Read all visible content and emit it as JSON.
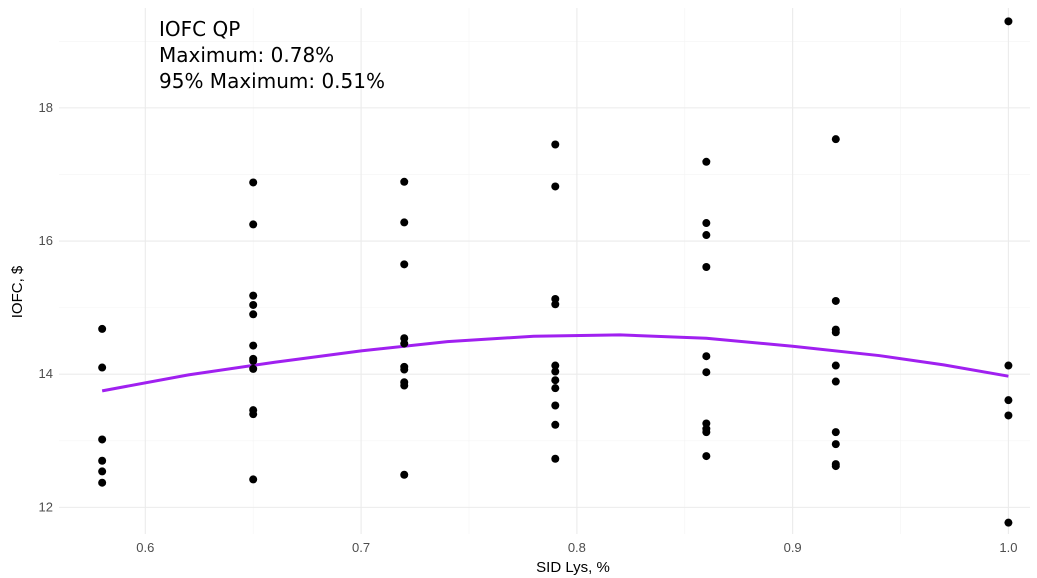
{
  "chart_data": {
    "type": "scatter",
    "xlabel": "SID Lys, %",
    "ylabel": "IOFC, $",
    "xlim": [
      0.56,
      1.01
    ],
    "ylim": [
      11.6,
      19.5
    ],
    "x_ticks": [
      0.6,
      0.7,
      0.8,
      0.9,
      1.0
    ],
    "x_tick_labels": [
      "0.6",
      "0.7",
      "0.8",
      "0.9",
      "1.0"
    ],
    "y_ticks": [
      12,
      14,
      16,
      18
    ],
    "y_tick_labels": [
      "12",
      "14",
      "16",
      "18"
    ],
    "grid": true,
    "annotations": [
      "IOFC QP",
      "Maximum: 0.78%",
      "95% Maximum: 0.51%"
    ],
    "point_color": "#000000",
    "line_color": "#a020f0",
    "points": [
      {
        "x": 0.58,
        "y": 14.68
      },
      {
        "x": 0.58,
        "y": 14.1
      },
      {
        "x": 0.58,
        "y": 13.02
      },
      {
        "x": 0.58,
        "y": 12.7
      },
      {
        "x": 0.58,
        "y": 12.54
      },
      {
        "x": 0.58,
        "y": 12.37
      },
      {
        "x": 0.65,
        "y": 16.88
      },
      {
        "x": 0.65,
        "y": 16.25
      },
      {
        "x": 0.65,
        "y": 15.18
      },
      {
        "x": 0.65,
        "y": 15.04
      },
      {
        "x": 0.65,
        "y": 14.9
      },
      {
        "x": 0.65,
        "y": 14.43
      },
      {
        "x": 0.65,
        "y": 14.23
      },
      {
        "x": 0.65,
        "y": 14.2
      },
      {
        "x": 0.65,
        "y": 14.08
      },
      {
        "x": 0.65,
        "y": 13.46
      },
      {
        "x": 0.65,
        "y": 13.4
      },
      {
        "x": 0.65,
        "y": 12.42
      },
      {
        "x": 0.72,
        "y": 16.89
      },
      {
        "x": 0.72,
        "y": 16.28
      },
      {
        "x": 0.72,
        "y": 15.65
      },
      {
        "x": 0.72,
        "y": 14.54
      },
      {
        "x": 0.72,
        "y": 14.46
      },
      {
        "x": 0.72,
        "y": 14.11
      },
      {
        "x": 0.72,
        "y": 14.07
      },
      {
        "x": 0.72,
        "y": 13.88
      },
      {
        "x": 0.72,
        "y": 13.83
      },
      {
        "x": 0.72,
        "y": 12.49
      },
      {
        "x": 0.79,
        "y": 17.45
      },
      {
        "x": 0.79,
        "y": 16.82
      },
      {
        "x": 0.79,
        "y": 15.13
      },
      {
        "x": 0.79,
        "y": 15.05
      },
      {
        "x": 0.79,
        "y": 14.13
      },
      {
        "x": 0.79,
        "y": 14.04
      },
      {
        "x": 0.79,
        "y": 13.91
      },
      {
        "x": 0.79,
        "y": 13.79
      },
      {
        "x": 0.79,
        "y": 13.53
      },
      {
        "x": 0.79,
        "y": 13.24
      },
      {
        "x": 0.79,
        "y": 12.73
      },
      {
        "x": 0.86,
        "y": 17.19
      },
      {
        "x": 0.86,
        "y": 16.27
      },
      {
        "x": 0.86,
        "y": 16.09
      },
      {
        "x": 0.86,
        "y": 15.61
      },
      {
        "x": 0.86,
        "y": 14.27
      },
      {
        "x": 0.86,
        "y": 14.03
      },
      {
        "x": 0.86,
        "y": 13.26
      },
      {
        "x": 0.86,
        "y": 13.18
      },
      {
        "x": 0.86,
        "y": 13.13
      },
      {
        "x": 0.86,
        "y": 12.77
      },
      {
        "x": 0.92,
        "y": 17.53
      },
      {
        "x": 0.92,
        "y": 15.1
      },
      {
        "x": 0.92,
        "y": 14.67
      },
      {
        "x": 0.92,
        "y": 14.63
      },
      {
        "x": 0.92,
        "y": 14.13
      },
      {
        "x": 0.92,
        "y": 13.89
      },
      {
        "x": 0.92,
        "y": 13.13
      },
      {
        "x": 0.92,
        "y": 12.95
      },
      {
        "x": 0.92,
        "y": 12.65
      },
      {
        "x": 0.92,
        "y": 12.62
      },
      {
        "x": 1.0,
        "y": 19.3
      },
      {
        "x": 1.0,
        "y": 14.13
      },
      {
        "x": 1.0,
        "y": 13.61
      },
      {
        "x": 1.0,
        "y": 13.38
      },
      {
        "x": 1.0,
        "y": 11.77
      }
    ],
    "fit_curve": {
      "type": "quadratic",
      "x_range": [
        0.58,
        1.0
      ],
      "points": [
        {
          "x": 0.58,
          "y": 13.75
        },
        {
          "x": 0.62,
          "y": 13.99
        },
        {
          "x": 0.66,
          "y": 14.18
        },
        {
          "x": 0.7,
          "y": 14.35
        },
        {
          "x": 0.74,
          "y": 14.49
        },
        {
          "x": 0.78,
          "y": 14.57
        },
        {
          "x": 0.82,
          "y": 14.59
        },
        {
          "x": 0.86,
          "y": 14.54
        },
        {
          "x": 0.9,
          "y": 14.42
        },
        {
          "x": 0.94,
          "y": 14.28
        },
        {
          "x": 0.97,
          "y": 14.14
        },
        {
          "x": 1.0,
          "y": 13.97
        }
      ]
    }
  }
}
